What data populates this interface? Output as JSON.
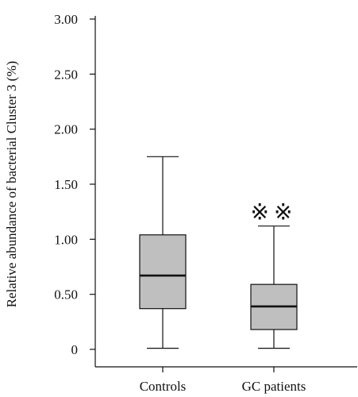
{
  "chart_data": {
    "type": "box",
    "ylabel": "Relative abundance of bacterial Cluster 3 (%)",
    "xlabel": "",
    "title": "",
    "ylim": [
      0,
      3.0
    ],
    "yticks": [
      {
        "value": 0,
        "label": "0"
      },
      {
        "value": 0.5,
        "label": "0.50"
      },
      {
        "value": 1.0,
        "label": "1.00"
      },
      {
        "value": 1.5,
        "label": "1.50"
      },
      {
        "value": 2.0,
        "label": "2.00"
      },
      {
        "value": 2.5,
        "label": "2.50"
      },
      {
        "value": 3.0,
        "label": "3.00"
      }
    ],
    "categories": [
      "Controls",
      "GC patients"
    ],
    "boxes": [
      {
        "category": "Controls",
        "min": 0.01,
        "q1": 0.37,
        "median": 0.67,
        "q3": 1.04,
        "max": 1.75,
        "annotation": ""
      },
      {
        "category": "GC patients",
        "min": 0.01,
        "q1": 0.18,
        "median": 0.39,
        "q3": 0.59,
        "max": 1.12,
        "annotation": "※※"
      }
    ],
    "box_fill": "#bfbfbf",
    "line_color": "#111111",
    "grid": false,
    "legend": "none"
  }
}
